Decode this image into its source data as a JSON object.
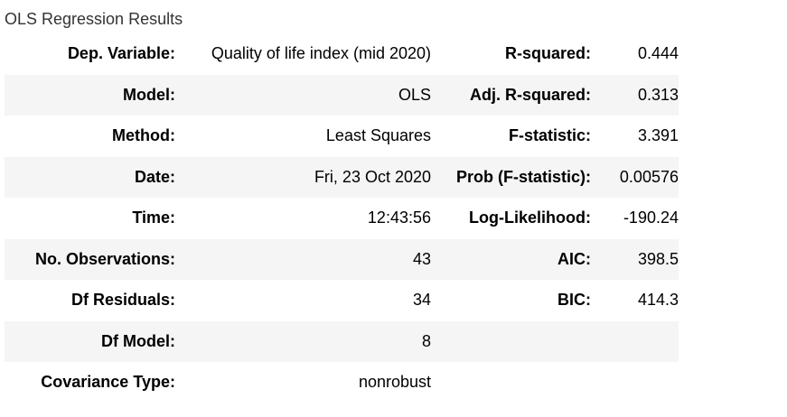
{
  "caption": "OLS Regression Results",
  "rows": [
    {
      "label_left": "Dep. Variable:",
      "value_left": "Quality of life index (mid 2020)",
      "label_right": "R-squared:",
      "value_right": "0.444"
    },
    {
      "label_left": "Model:",
      "value_left": "OLS",
      "label_right": "Adj. R-squared:",
      "value_right": "0.313"
    },
    {
      "label_left": "Method:",
      "value_left": "Least Squares",
      "label_right": "F-statistic:",
      "value_right": "3.391"
    },
    {
      "label_left": "Date:",
      "value_left": "Fri, 23 Oct 2020",
      "label_right": "Prob (F-statistic):",
      "value_right": "0.00576"
    },
    {
      "label_left": "Time:",
      "value_left": "12:43:56",
      "label_right": "Log-Likelihood:",
      "value_right": "-190.24"
    },
    {
      "label_left": "No. Observations:",
      "value_left": "43",
      "label_right": "AIC:",
      "value_right": "398.5"
    },
    {
      "label_left": "Df Residuals:",
      "value_left": "34",
      "label_right": "BIC:",
      "value_right": "414.3"
    },
    {
      "label_left": "Df Model:",
      "value_left": "8",
      "label_right": "",
      "value_right": ""
    },
    {
      "label_left": "Covariance Type:",
      "value_left": "nonrobust",
      "label_right": "",
      "value_right": ""
    }
  ],
  "colors": {
    "row_shade": "#f5f5f5",
    "caption_text": "#333333"
  }
}
